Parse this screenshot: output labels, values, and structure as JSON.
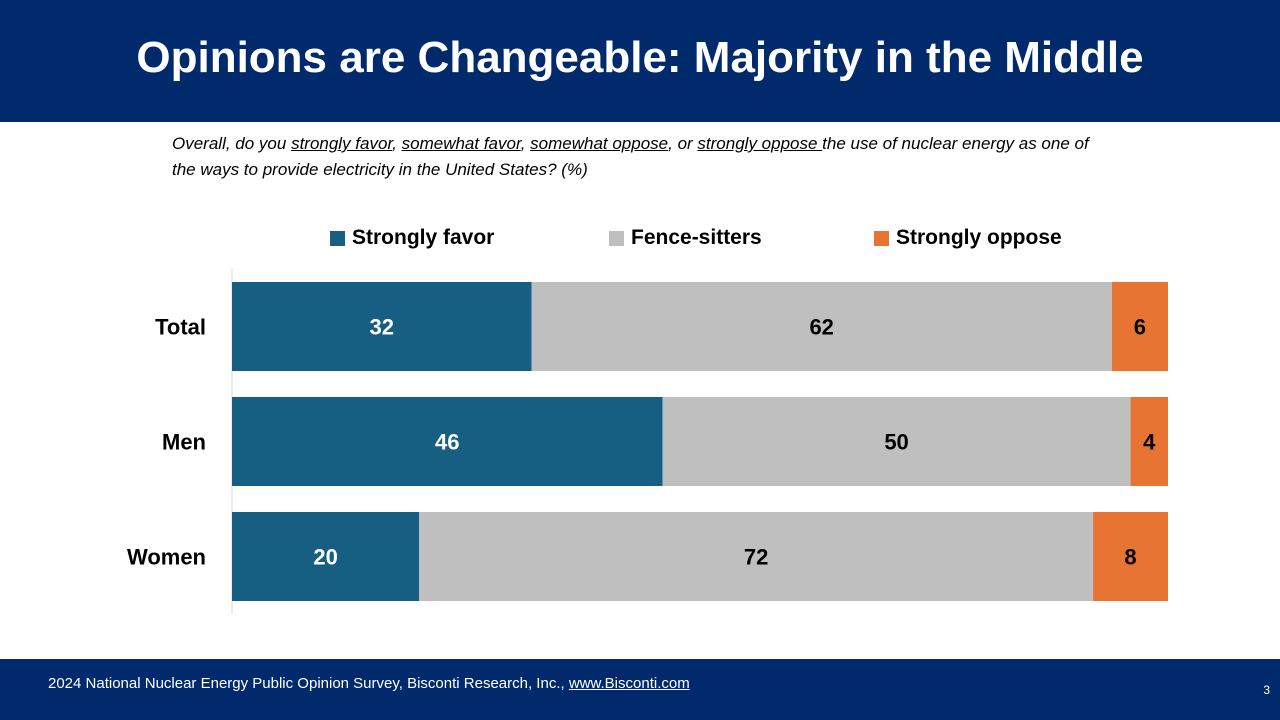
{
  "header": {
    "title": "Opinions are Changeable: Majority in the Middle"
  },
  "question": {
    "prefix": "Overall, do you ",
    "opt1": "strongly favor",
    "sep1": ", ",
    "opt2": "somewhat favor",
    "sep2": ", ",
    "opt3": "somewhat oppose",
    "sep3": ", or ",
    "opt4": "strongly oppose ",
    "suffix": "the use of nuclear energy as one of the ways to provide electricity in the United States? (%)"
  },
  "colors": {
    "header_bg": "#002a6c",
    "strongly_favor": "#175e83",
    "fence_sitters": "#bfbfbf",
    "strongly_oppose": "#e87434"
  },
  "chart_data": {
    "type": "bar",
    "orientation": "horizontal",
    "stacked": true,
    "categories": [
      "Total",
      "Men",
      "Women"
    ],
    "series": [
      {
        "name": "Strongly favor",
        "values": [
          32,
          46,
          20
        ],
        "color": "#175e83"
      },
      {
        "name": "Fence-sitters",
        "values": [
          62,
          50,
          72
        ],
        "color": "#bfbfbf"
      },
      {
        "name": "Strongly oppose",
        "values": [
          6,
          4,
          8
        ],
        "color": "#e87434"
      }
    ],
    "xlim": [
      0,
      100
    ],
    "legend_position": "top",
    "grid": false,
    "data_labels": true
  },
  "footer": {
    "source_text": "2024 National Nuclear Energy Public Opinion Survey, Bisconti Research, Inc., ",
    "source_link": "www.Bisconti.com",
    "page_number": "3"
  }
}
